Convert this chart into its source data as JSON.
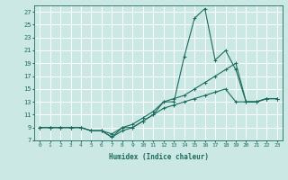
{
  "xlabel": "Humidex (Indice chaleur)",
  "bg_color": "#cce8e4",
  "grid_color": "#ffffff",
  "line_color": "#1a6b5e",
  "xlim": [
    -0.5,
    23.5
  ],
  "ylim": [
    7,
    28
  ],
  "xticks": [
    0,
    1,
    2,
    3,
    4,
    5,
    6,
    7,
    8,
    9,
    10,
    11,
    12,
    13,
    14,
    15,
    16,
    17,
    18,
    19,
    20,
    21,
    22,
    23
  ],
  "yticks": [
    7,
    9,
    11,
    13,
    15,
    17,
    19,
    21,
    23,
    25,
    27
  ],
  "series": [
    {
      "x": [
        0,
        1,
        2,
        3,
        4,
        5,
        6,
        7,
        8,
        9,
        10,
        11,
        12,
        13,
        14,
        15,
        16,
        17,
        18,
        19,
        20,
        21,
        22,
        23
      ],
      "y": [
        9,
        9,
        9,
        9,
        9,
        8.5,
        8.5,
        7.5,
        8.5,
        9,
        10,
        11,
        12,
        12.5,
        13,
        13.5,
        14,
        14.5,
        15,
        13,
        13,
        13,
        13.5,
        13.5
      ]
    },
    {
      "x": [
        0,
        1,
        2,
        3,
        4,
        5,
        6,
        7,
        8,
        9,
        10,
        11,
        12,
        13,
        14,
        15,
        16,
        17,
        18,
        19,
        20,
        21,
        22,
        23
      ],
      "y": [
        9,
        9,
        9,
        9,
        9,
        8.5,
        8.5,
        8,
        9,
        9.5,
        10.5,
        11.5,
        13,
        13.5,
        14,
        15,
        16,
        17,
        18,
        19,
        13,
        13,
        13.5,
        13.5
      ]
    },
    {
      "x": [
        0,
        1,
        2,
        3,
        4,
        5,
        6,
        7,
        8,
        9,
        10,
        11,
        12,
        13,
        14,
        15,
        16,
        17,
        18,
        19,
        20,
        21,
        22,
        23
      ],
      "y": [
        9,
        9,
        9,
        9,
        9,
        8.5,
        8.5,
        7.5,
        9,
        9,
        10,
        11,
        13,
        13,
        20,
        26,
        27.5,
        19.5,
        21,
        18,
        13,
        13,
        13.5,
        13.5
      ]
    }
  ]
}
